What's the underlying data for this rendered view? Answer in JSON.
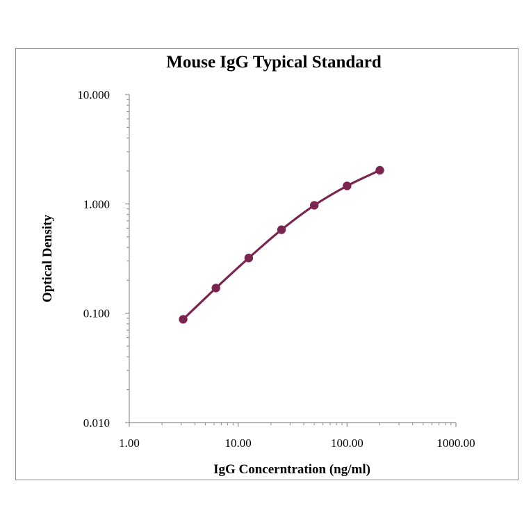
{
  "chart_data": {
    "type": "line",
    "title": "Mouse IgG Typical Standard",
    "xlabel": "IgG Concerntration (ng/ml)",
    "ylabel": "Optical Density",
    "xscale": "log",
    "yscale": "log",
    "xlim": [
      1,
      1000
    ],
    "ylim": [
      0.01,
      10
    ],
    "xticks": [
      "1.00",
      "10.00",
      "100.00",
      "1000.00"
    ],
    "yticks": [
      "0.010",
      "0.100",
      "1.000",
      "10.000"
    ],
    "grid": false,
    "legend": "none",
    "series_color": "#7b2450",
    "x": [
      3.125,
      6.25,
      12.5,
      25,
      50,
      100,
      200
    ],
    "y": [
      0.088,
      0.17,
      0.32,
      0.58,
      0.97,
      1.46,
      2.03
    ]
  }
}
